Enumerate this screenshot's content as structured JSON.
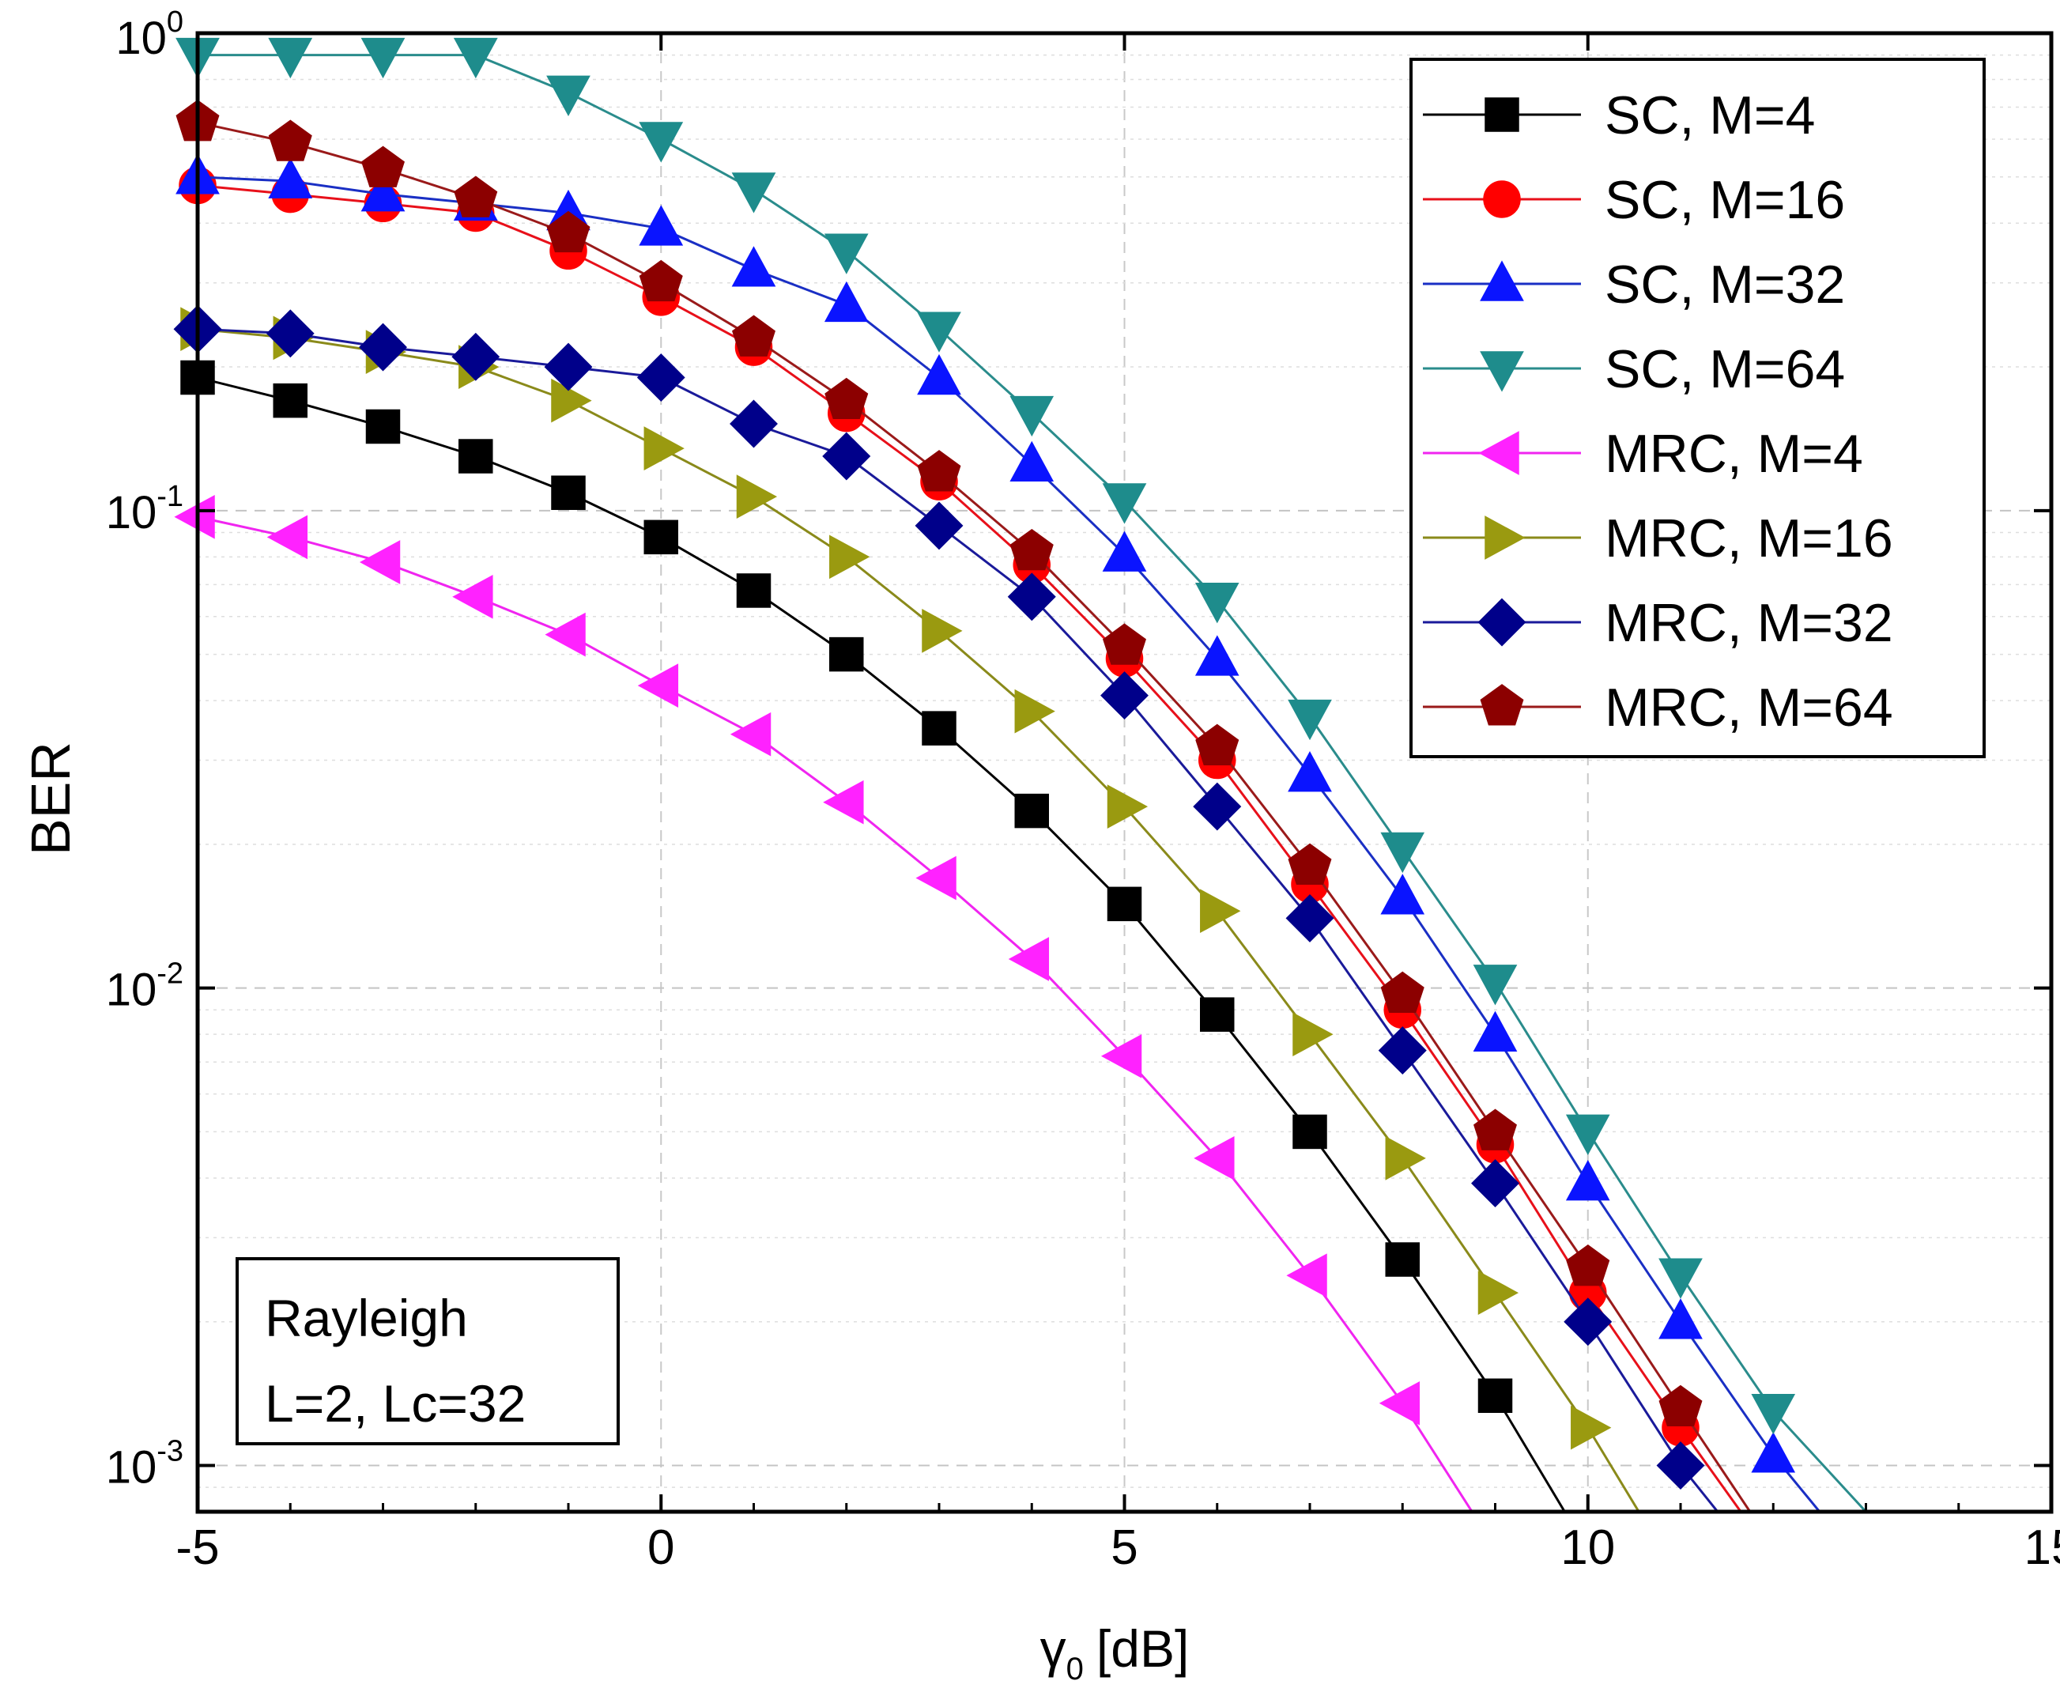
{
  "chart_data": {
    "type": "line",
    "title": "",
    "xlabel": "γ₀ [dB]",
    "xlabel_parts": {
      "symbol": "γ",
      "sub": "0",
      "unit": "[dB]"
    },
    "ylabel": "BER",
    "xscale": "linear",
    "yscale": "log",
    "xlim": [
      -5,
      15
    ],
    "ylim": [
      0.0008,
      1
    ],
    "grid": true,
    "xticks": [
      {
        "value": -5,
        "label": "-5"
      },
      {
        "value": 0,
        "label": "0"
      },
      {
        "value": 5,
        "label": "5"
      },
      {
        "value": 10,
        "label": "10"
      },
      {
        "value": 15,
        "label": "15"
      }
    ],
    "yticks": [
      {
        "value": 1,
        "base": "10",
        "exp": "0"
      },
      {
        "value": 0.1,
        "base": "10",
        "exp": "-1"
      },
      {
        "value": 0.01,
        "base": "10",
        "exp": "-2"
      },
      {
        "value": 0.001,
        "base": "10",
        "exp": "-3"
      }
    ],
    "legend_position": "top-right",
    "annotation": {
      "lines": [
        "Rayleigh",
        "L=2, Lc=32"
      ],
      "position": "bottom-left"
    },
    "series": [
      {
        "name": "SC, M=4",
        "color": "#000000",
        "marker": "square",
        "marker_color": "#000000",
        "x": [
          -5,
          -4,
          -3,
          -2,
          -1,
          0,
          1,
          2,
          3,
          4,
          5,
          6,
          7,
          8,
          9
        ],
        "y": [
          0.19,
          0.17,
          0.15,
          0.13,
          0.109,
          0.088,
          0.068,
          0.05,
          0.035,
          0.0235,
          0.015,
          0.0088,
          0.005,
          0.0027,
          0.0014
        ],
        "tail": [
          9.75,
          0.0008
        ]
      },
      {
        "name": "SC, M=16",
        "color": "#e8101a",
        "marker": "circle",
        "marker_color": "#ff0000",
        "x": [
          -5,
          -4,
          -3,
          -2,
          -1,
          0,
          1,
          2,
          3,
          4,
          5,
          6,
          7,
          8,
          9,
          10,
          11
        ],
        "y": [
          0.48,
          0.46,
          0.44,
          0.42,
          0.35,
          0.28,
          0.22,
          0.16,
          0.115,
          0.077,
          0.049,
          0.03,
          0.0165,
          0.009,
          0.0047,
          0.0023,
          0.0012
        ],
        "tail": [
          11.65,
          0.0008
        ]
      },
      {
        "name": "SC, M=32",
        "color": "#1a2fc4",
        "marker": "triangle-up",
        "marker_color": "#0a14ff",
        "x": [
          -5,
          -4,
          -3,
          -2,
          -1,
          0,
          1,
          2,
          3,
          4,
          5,
          6,
          7,
          8,
          9,
          10,
          11,
          12
        ],
        "y": [
          0.5,
          0.49,
          0.46,
          0.44,
          0.42,
          0.39,
          0.32,
          0.27,
          0.19,
          0.125,
          0.081,
          0.049,
          0.028,
          0.0155,
          0.008,
          0.0039,
          0.002,
          0.00105
        ],
        "tail": [
          12.5,
          0.0008
        ]
      },
      {
        "name": "SC, M=64",
        "color": "#2a8c8c",
        "marker": "triangle-down",
        "marker_color": "#1e8c8c",
        "x": [
          -5,
          -4,
          -3,
          -2,
          -1,
          0,
          1,
          2,
          3,
          4,
          5,
          6,
          7,
          8,
          9,
          10,
          11,
          12
        ],
        "y": [
          0.9,
          0.9,
          0.9,
          0.9,
          0.75,
          0.6,
          0.47,
          0.35,
          0.24,
          0.16,
          0.105,
          0.065,
          0.037,
          0.0195,
          0.0103,
          0.005,
          0.0025,
          0.0013
        ],
        "tail": [
          13.0,
          0.0008
        ]
      },
      {
        "name": "MRC, M=4",
        "color": "#f025f0",
        "marker": "triangle-left",
        "marker_color": "#ff22ff",
        "x": [
          -5,
          -4,
          -3,
          -2,
          -1,
          0,
          1,
          2,
          3,
          4,
          5,
          6,
          7,
          8
        ],
        "y": [
          0.097,
          0.088,
          0.078,
          0.066,
          0.055,
          0.043,
          0.034,
          0.0245,
          0.017,
          0.0115,
          0.0072,
          0.0044,
          0.0025,
          0.00135
        ],
        "tail": [
          8.75,
          0.0008
        ]
      },
      {
        "name": "MRC, M=16",
        "color": "#8a8a1a",
        "marker": "triangle-right",
        "marker_color": "#9a9a10",
        "x": [
          -5,
          -4,
          -3,
          -2,
          -1,
          0,
          1,
          2,
          3,
          4,
          5,
          6,
          7,
          8,
          9,
          10
        ],
        "y": [
          0.24,
          0.23,
          0.215,
          0.2,
          0.17,
          0.135,
          0.107,
          0.08,
          0.056,
          0.038,
          0.024,
          0.0145,
          0.008,
          0.0044,
          0.0023,
          0.0012
        ],
        "tail": [
          10.55,
          0.0008
        ]
      },
      {
        "name": "MRC, M=32",
        "color": "#1a1a9a",
        "marker": "diamond",
        "marker_color": "#00008a",
        "x": [
          -5,
          -4,
          -3,
          -2,
          -1,
          0,
          1,
          2,
          3,
          4,
          5,
          6,
          7,
          8,
          9,
          10,
          11
        ],
        "y": [
          0.24,
          0.235,
          0.22,
          0.21,
          0.2,
          0.19,
          0.152,
          0.13,
          0.093,
          0.066,
          0.041,
          0.024,
          0.014,
          0.0074,
          0.0039,
          0.002,
          0.001
        ],
        "tail": [
          11.4,
          0.0008
        ]
      },
      {
        "name": "MRC, M=64",
        "color": "#9a1a1a",
        "marker": "pentagon",
        "marker_color": "#8c0000",
        "x": [
          -5,
          -4,
          -3,
          -2,
          -1,
          0,
          1,
          2,
          3,
          4,
          5,
          6,
          7,
          8,
          9,
          10,
          11
        ],
        "y": [
          0.65,
          0.59,
          0.52,
          0.45,
          0.38,
          0.3,
          0.23,
          0.17,
          0.12,
          0.082,
          0.052,
          0.032,
          0.018,
          0.0097,
          0.005,
          0.0026,
          0.00132
        ],
        "tail": [
          11.75,
          0.0008
        ]
      }
    ]
  }
}
